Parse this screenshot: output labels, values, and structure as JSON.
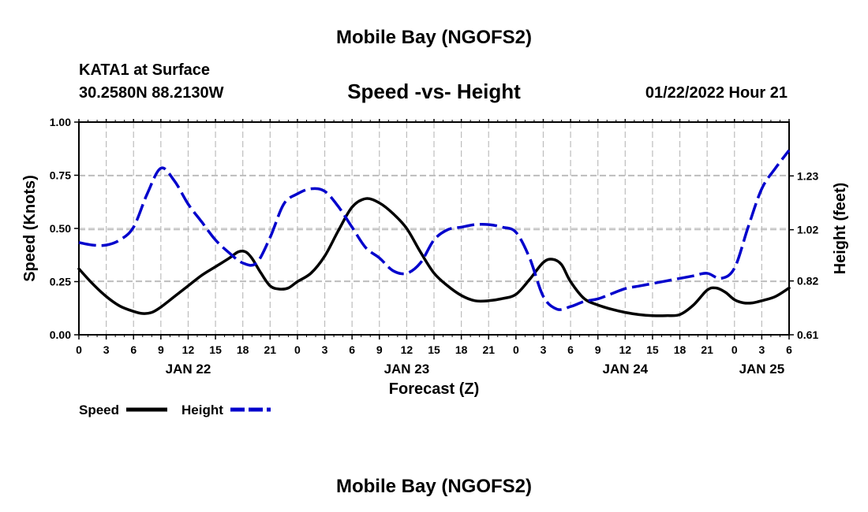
{
  "page": {
    "top_title": "Mobile Bay (NGOFS2)",
    "bottom_title": "Mobile Bay (NGOFS2)",
    "station": "KATA1 at Surface",
    "coords": "30.2580N  88.2130W",
    "datetime": "01/22/2022 Hour 21"
  },
  "chart_data": {
    "type": "line",
    "title": "Speed -vs- Height",
    "xlabel": "Forecast (Z)",
    "ylabel": "Speed (Knots)",
    "y2label": "Height (feet)",
    "x_range_hours": [
      0,
      78
    ],
    "ylim": [
      0,
      1
    ],
    "y2lim": [
      0.61,
      1.44
    ],
    "x_ticks": [
      {
        "h": 0,
        "label": "0"
      },
      {
        "h": 3,
        "label": "3"
      },
      {
        "h": 6,
        "label": "6"
      },
      {
        "h": 9,
        "label": "9"
      },
      {
        "h": 12,
        "label": "12"
      },
      {
        "h": 15,
        "label": "15"
      },
      {
        "h": 18,
        "label": "18"
      },
      {
        "h": 21,
        "label": "21"
      },
      {
        "h": 24,
        "label": "0"
      },
      {
        "h": 27,
        "label": "3"
      },
      {
        "h": 30,
        "label": "6"
      },
      {
        "h": 33,
        "label": "9"
      },
      {
        "h": 36,
        "label": "12"
      },
      {
        "h": 39,
        "label": "15"
      },
      {
        "h": 42,
        "label": "18"
      },
      {
        "h": 45,
        "label": "21"
      },
      {
        "h": 48,
        "label": "0"
      },
      {
        "h": 51,
        "label": "3"
      },
      {
        "h": 54,
        "label": "6"
      },
      {
        "h": 57,
        "label": "9"
      },
      {
        "h": 60,
        "label": "12"
      },
      {
        "h": 63,
        "label": "15"
      },
      {
        "h": 66,
        "label": "18"
      },
      {
        "h": 69,
        "label": "21"
      },
      {
        "h": 72,
        "label": "0"
      },
      {
        "h": 75,
        "label": "3"
      },
      {
        "h": 78,
        "label": "6"
      }
    ],
    "date_labels": [
      {
        "h": 12,
        "label": "JAN 22"
      },
      {
        "h": 36,
        "label": "JAN 23"
      },
      {
        "h": 60,
        "label": "JAN 24"
      },
      {
        "h": 75,
        "label": "JAN 25"
      }
    ],
    "y_ticks": [
      {
        "v": 0.0,
        "label": "0.00"
      },
      {
        "v": 0.25,
        "label": "0.25"
      },
      {
        "v": 0.5,
        "label": "0.50"
      },
      {
        "v": 0.75,
        "label": "0.75"
      },
      {
        "v": 1.0,
        "label": "1.00"
      }
    ],
    "y2_ticks": [
      {
        "v": 0.61,
        "label": "0.61"
      },
      {
        "v": 0.82,
        "label": "0.82"
      },
      {
        "v": 1.02,
        "label": "1.02"
      },
      {
        "v": 1.23,
        "label": "1.23"
      }
    ],
    "legend": [
      {
        "name": "Speed",
        "color": "#000000",
        "dash": "solid"
      },
      {
        "name": "Height",
        "color": "#0000cc",
        "dash": "dashed"
      }
    ],
    "series": [
      {
        "name": "Speed",
        "axis": "left",
        "color": "#000000",
        "x": [
          0,
          1.5,
          3,
          4.5,
          6,
          7,
          8,
          9,
          10.5,
          12,
          13.5,
          15,
          16.5,
          17.5,
          18.3,
          19,
          20,
          21,
          22,
          23,
          24,
          25.5,
          27,
          28.5,
          30,
          31.5,
          33,
          34.5,
          36,
          37.5,
          39,
          40.5,
          42,
          43.5,
          45,
          46.5,
          48,
          49.5,
          51,
          52,
          53,
          54,
          55.5,
          57,
          58.5,
          60,
          61.5,
          63,
          64.5,
          66,
          67.5,
          69,
          70,
          71,
          72,
          73,
          74,
          75,
          76.5,
          78
        ],
        "values": [
          0.31,
          0.24,
          0.18,
          0.135,
          0.11,
          0.1,
          0.105,
          0.13,
          0.18,
          0.23,
          0.28,
          0.32,
          0.36,
          0.39,
          0.39,
          0.36,
          0.29,
          0.23,
          0.215,
          0.22,
          0.25,
          0.29,
          0.37,
          0.49,
          0.6,
          0.64,
          0.62,
          0.57,
          0.5,
          0.39,
          0.29,
          0.23,
          0.185,
          0.16,
          0.16,
          0.17,
          0.19,
          0.26,
          0.34,
          0.355,
          0.33,
          0.25,
          0.17,
          0.14,
          0.12,
          0.105,
          0.095,
          0.09,
          0.09,
          0.095,
          0.14,
          0.21,
          0.22,
          0.2,
          0.165,
          0.15,
          0.15,
          0.16,
          0.18,
          0.22
        ]
      },
      {
        "name": "Height",
        "axis": "right",
        "color": "#0000cc",
        "x": [
          0,
          1.5,
          3,
          4.5,
          6,
          7.5,
          9,
          10.5,
          12,
          13.5,
          15,
          16.5,
          18,
          19.5,
          21,
          22.5,
          24,
          25.5,
          27,
          28.5,
          30,
          31.5,
          33,
          34.5,
          36,
          37.5,
          39,
          40.5,
          42,
          43.5,
          45,
          46.5,
          48,
          49.5,
          51,
          52.5,
          54,
          55.5,
          57,
          58.5,
          60,
          61.5,
          63,
          64.5,
          66,
          67.5,
          69,
          70.5,
          72,
          73.5,
          75,
          76.5,
          78
        ],
        "values": [
          0.97,
          0.96,
          0.96,
          0.98,
          1.03,
          1.16,
          1.26,
          1.21,
          1.12,
          1.05,
          0.98,
          0.93,
          0.89,
          0.89,
          0.99,
          1.12,
          1.16,
          1.18,
          1.17,
          1.11,
          1.03,
          0.95,
          0.91,
          0.86,
          0.85,
          0.89,
          0.98,
          1.02,
          1.03,
          1.04,
          1.04,
          1.03,
          1.01,
          0.91,
          0.76,
          0.71,
          0.72,
          0.74,
          0.75,
          0.77,
          0.79,
          0.8,
          0.81,
          0.82,
          0.83,
          0.84,
          0.85,
          0.83,
          0.87,
          1.03,
          1.18,
          1.26,
          1.33
        ]
      }
    ]
  }
}
